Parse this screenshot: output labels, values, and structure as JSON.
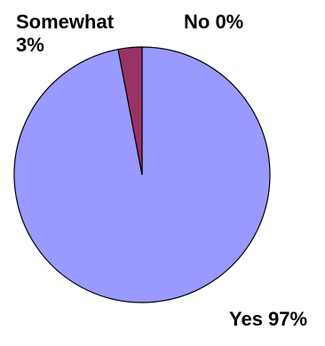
{
  "chart_data": {
    "type": "pie",
    "categories": [
      "Yes",
      "Somewhat",
      "No"
    ],
    "values": [
      97,
      3,
      0
    ],
    "colors": [
      "#9999ff",
      "#993366",
      "#ffffcc"
    ],
    "labels": {
      "somewhat_line1": "Somewhat",
      "somewhat_line2": "3%",
      "no": "No 0%",
      "yes": "Yes 97%"
    }
  }
}
